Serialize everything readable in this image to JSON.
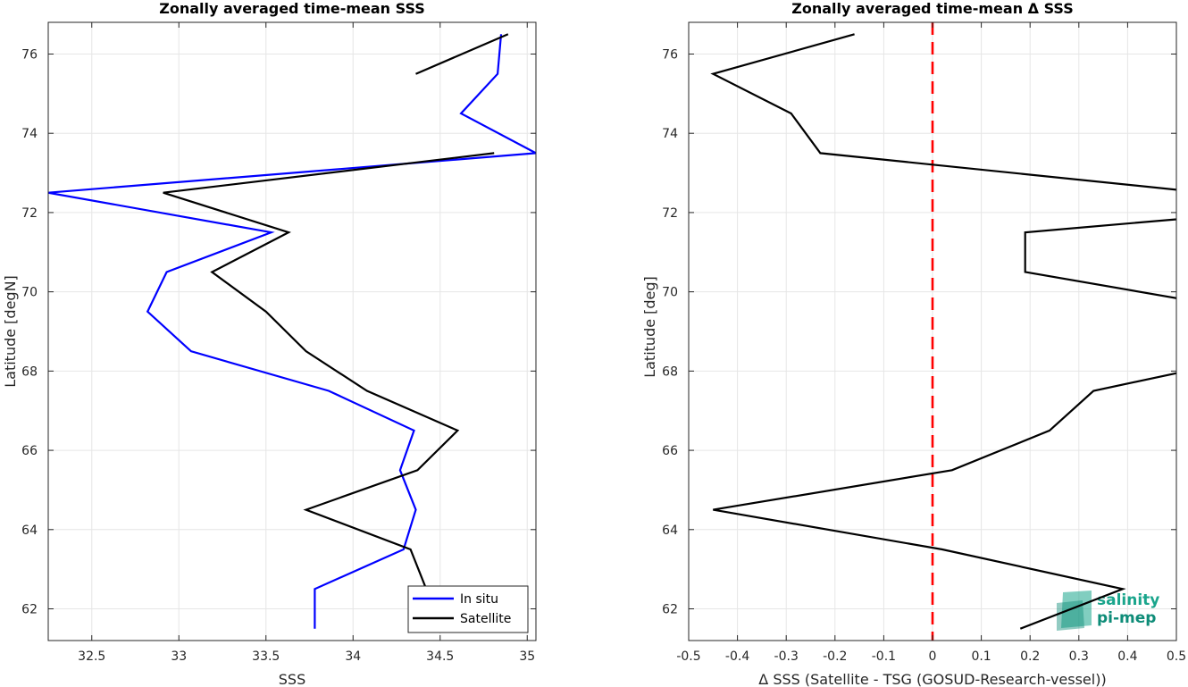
{
  "chart_data": [
    {
      "type": "line",
      "title": "Zonally averaged time-mean SSS",
      "xlabel": "SSS",
      "ylabel": "Latitude [degN]",
      "xlim": [
        32.25,
        35.05
      ],
      "ylim": [
        61.2,
        76.8
      ],
      "x_ticks": [
        "32.5",
        "33",
        "33.5",
        "34",
        "34.5",
        "35"
      ],
      "y_ticks": [
        "62",
        "64",
        "66",
        "68",
        "70",
        "72",
        "74",
        "76"
      ],
      "grid": true,
      "legend": "bottom-right",
      "series": [
        {
          "name": "In situ",
          "color": "#0000ff",
          "points": [
            [
              34.85,
              76.5
            ],
            [
              34.83,
              75.5
            ],
            [
              34.62,
              74.5
            ],
            [
              35.05,
              73.5
            ],
            [
              32.25,
              72.5
            ],
            [
              33.53,
              71.5
            ],
            [
              32.93,
              70.5
            ],
            [
              32.82,
              69.5
            ],
            [
              33.07,
              68.5
            ],
            [
              33.86,
              67.5
            ],
            [
              34.35,
              66.5
            ],
            [
              34.27,
              65.5
            ],
            [
              34.36,
              64.5
            ],
            [
              34.29,
              63.5
            ],
            [
              33.78,
              62.5
            ],
            [
              33.78,
              61.5
            ]
          ]
        },
        {
          "name": "Satellite",
          "color": "#000000",
          "points": [
            [
              34.89,
              76.5
            ],
            [
              34.36,
              75.5
            ],
            [
              null,
              74.5
            ],
            [
              34.81,
              73.5
            ],
            [
              32.91,
              72.5
            ],
            [
              33.63,
              71.5
            ],
            [
              33.19,
              70.5
            ],
            [
              33.5,
              69.5
            ],
            [
              33.73,
              68.5
            ],
            [
              34.08,
              67.5
            ],
            [
              34.6,
              66.5
            ],
            [
              34.37,
              65.5
            ],
            [
              33.73,
              64.5
            ],
            [
              34.33,
              63.5
            ],
            [
              34.42,
              62.5
            ],
            [
              34.42,
              61.5
            ]
          ]
        }
      ]
    },
    {
      "type": "line",
      "title": "Zonally averaged time-mean Δ SSS",
      "xlabel": "Δ SSS (Satellite - TSG (GOSUD-Research-vessel))",
      "ylabel": "Latitude [deg]",
      "xlim": [
        -0.5,
        0.5
      ],
      "ylim": [
        61.2,
        76.8
      ],
      "x_ticks": [
        "-0.5",
        "-0.4",
        "-0.3",
        "-0.2",
        "-0.1",
        "0",
        "0.1",
        "0.2",
        "0.3",
        "0.4",
        "0.5"
      ],
      "y_ticks": [
        "62",
        "64",
        "66",
        "68",
        "70",
        "72",
        "74",
        "76"
      ],
      "grid": true,
      "reference_line": {
        "x": 0,
        "color": "#ff0000",
        "style": "dashed"
      },
      "series": [
        {
          "color": "#000000",
          "points": [
            [
              -0.16,
              76.5
            ],
            [
              -0.45,
              75.5
            ],
            [
              -0.29,
              74.5
            ],
            [
              -0.23,
              73.5
            ],
            [
              0.56,
              72.5
            ],
            [
              0.66,
              72.0
            ],
            [
              0.19,
              71.5
            ],
            [
              0.19,
              70.5
            ],
            [
              0.66,
              69.5
            ],
            [
              0.71,
              68.5
            ],
            [
              0.33,
              67.5
            ],
            [
              0.24,
              66.5
            ],
            [
              0.04,
              65.5
            ],
            [
              -0.45,
              64.5
            ],
            [
              0.02,
              63.5
            ],
            [
              0.39,
              62.5
            ],
            [
              0.18,
              61.5
            ]
          ]
        }
      ]
    }
  ],
  "logo": {
    "line1": "salinity",
    "line2": "pi-mep"
  }
}
